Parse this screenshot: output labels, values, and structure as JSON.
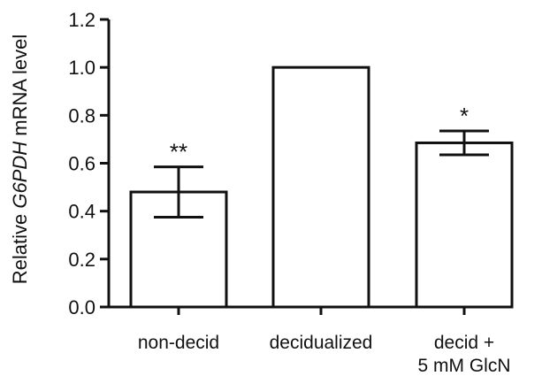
{
  "chart_data": {
    "type": "bar",
    "ylabel": {
      "prefix": "Relative ",
      "gene": "G6PDH",
      "suffix": " mRNA level"
    },
    "ylim": [
      0,
      1.2
    ],
    "yticks": [
      0.0,
      0.2,
      0.4,
      0.6,
      0.8,
      1.0,
      1.2
    ],
    "ytick_labels": [
      "0.0",
      "0.2",
      "0.4",
      "0.6",
      "0.8",
      "1.0",
      "1.2"
    ],
    "categories": [
      {
        "lines": [
          "non-decid"
        ]
      },
      {
        "lines": [
          "decidualized"
        ]
      },
      {
        "lines": [
          "decid +",
          "5 mM  GlcN"
        ]
      }
    ],
    "values": [
      0.48,
      1.0,
      0.685
    ],
    "errors": [
      0.105,
      0.0,
      0.05
    ],
    "significance": [
      "**",
      "",
      "*"
    ],
    "bar_fill": "#ffffff",
    "stroke_color": "#111111",
    "grid": false,
    "legend": "none"
  }
}
